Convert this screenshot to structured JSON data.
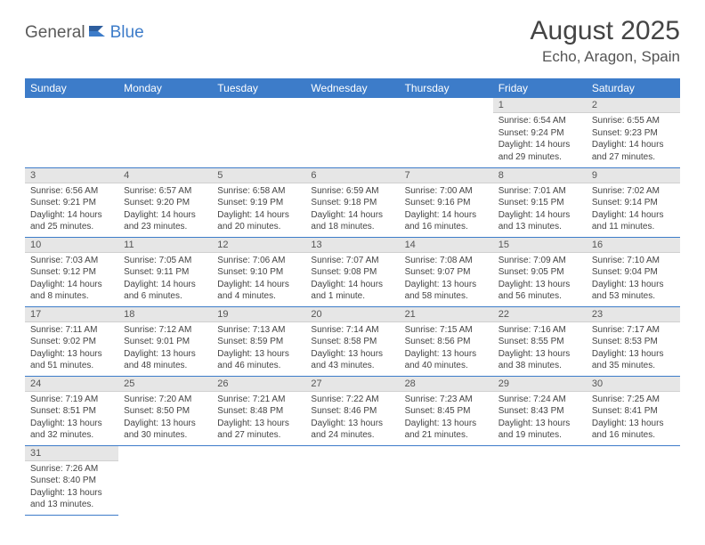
{
  "brand": {
    "part1": "General",
    "part2": "Blue"
  },
  "title": "August 2025",
  "location": "Echo, Aragon, Spain",
  "colors": {
    "header_bg": "#3d7cc9",
    "header_text": "#ffffff",
    "daynum_bg": "#e6e6e6",
    "cell_border": "#3d7cc9",
    "body_text": "#444444"
  },
  "day_headers": [
    "Sunday",
    "Monday",
    "Tuesday",
    "Wednesday",
    "Thursday",
    "Friday",
    "Saturday"
  ],
  "weeks": [
    [
      null,
      null,
      null,
      null,
      null,
      {
        "n": "1",
        "sunrise": "Sunrise: 6:54 AM",
        "sunset": "Sunset: 9:24 PM",
        "daylight": "Daylight: 14 hours and 29 minutes."
      },
      {
        "n": "2",
        "sunrise": "Sunrise: 6:55 AM",
        "sunset": "Sunset: 9:23 PM",
        "daylight": "Daylight: 14 hours and 27 minutes."
      }
    ],
    [
      {
        "n": "3",
        "sunrise": "Sunrise: 6:56 AM",
        "sunset": "Sunset: 9:21 PM",
        "daylight": "Daylight: 14 hours and 25 minutes."
      },
      {
        "n": "4",
        "sunrise": "Sunrise: 6:57 AM",
        "sunset": "Sunset: 9:20 PM",
        "daylight": "Daylight: 14 hours and 23 minutes."
      },
      {
        "n": "5",
        "sunrise": "Sunrise: 6:58 AM",
        "sunset": "Sunset: 9:19 PM",
        "daylight": "Daylight: 14 hours and 20 minutes."
      },
      {
        "n": "6",
        "sunrise": "Sunrise: 6:59 AM",
        "sunset": "Sunset: 9:18 PM",
        "daylight": "Daylight: 14 hours and 18 minutes."
      },
      {
        "n": "7",
        "sunrise": "Sunrise: 7:00 AM",
        "sunset": "Sunset: 9:16 PM",
        "daylight": "Daylight: 14 hours and 16 minutes."
      },
      {
        "n": "8",
        "sunrise": "Sunrise: 7:01 AM",
        "sunset": "Sunset: 9:15 PM",
        "daylight": "Daylight: 14 hours and 13 minutes."
      },
      {
        "n": "9",
        "sunrise": "Sunrise: 7:02 AM",
        "sunset": "Sunset: 9:14 PM",
        "daylight": "Daylight: 14 hours and 11 minutes."
      }
    ],
    [
      {
        "n": "10",
        "sunrise": "Sunrise: 7:03 AM",
        "sunset": "Sunset: 9:12 PM",
        "daylight": "Daylight: 14 hours and 8 minutes."
      },
      {
        "n": "11",
        "sunrise": "Sunrise: 7:05 AM",
        "sunset": "Sunset: 9:11 PM",
        "daylight": "Daylight: 14 hours and 6 minutes."
      },
      {
        "n": "12",
        "sunrise": "Sunrise: 7:06 AM",
        "sunset": "Sunset: 9:10 PM",
        "daylight": "Daylight: 14 hours and 4 minutes."
      },
      {
        "n": "13",
        "sunrise": "Sunrise: 7:07 AM",
        "sunset": "Sunset: 9:08 PM",
        "daylight": "Daylight: 14 hours and 1 minute."
      },
      {
        "n": "14",
        "sunrise": "Sunrise: 7:08 AM",
        "sunset": "Sunset: 9:07 PM",
        "daylight": "Daylight: 13 hours and 58 minutes."
      },
      {
        "n": "15",
        "sunrise": "Sunrise: 7:09 AM",
        "sunset": "Sunset: 9:05 PM",
        "daylight": "Daylight: 13 hours and 56 minutes."
      },
      {
        "n": "16",
        "sunrise": "Sunrise: 7:10 AM",
        "sunset": "Sunset: 9:04 PM",
        "daylight": "Daylight: 13 hours and 53 minutes."
      }
    ],
    [
      {
        "n": "17",
        "sunrise": "Sunrise: 7:11 AM",
        "sunset": "Sunset: 9:02 PM",
        "daylight": "Daylight: 13 hours and 51 minutes."
      },
      {
        "n": "18",
        "sunrise": "Sunrise: 7:12 AM",
        "sunset": "Sunset: 9:01 PM",
        "daylight": "Daylight: 13 hours and 48 minutes."
      },
      {
        "n": "19",
        "sunrise": "Sunrise: 7:13 AM",
        "sunset": "Sunset: 8:59 PM",
        "daylight": "Daylight: 13 hours and 46 minutes."
      },
      {
        "n": "20",
        "sunrise": "Sunrise: 7:14 AM",
        "sunset": "Sunset: 8:58 PM",
        "daylight": "Daylight: 13 hours and 43 minutes."
      },
      {
        "n": "21",
        "sunrise": "Sunrise: 7:15 AM",
        "sunset": "Sunset: 8:56 PM",
        "daylight": "Daylight: 13 hours and 40 minutes."
      },
      {
        "n": "22",
        "sunrise": "Sunrise: 7:16 AM",
        "sunset": "Sunset: 8:55 PM",
        "daylight": "Daylight: 13 hours and 38 minutes."
      },
      {
        "n": "23",
        "sunrise": "Sunrise: 7:17 AM",
        "sunset": "Sunset: 8:53 PM",
        "daylight": "Daylight: 13 hours and 35 minutes."
      }
    ],
    [
      {
        "n": "24",
        "sunrise": "Sunrise: 7:19 AM",
        "sunset": "Sunset: 8:51 PM",
        "daylight": "Daylight: 13 hours and 32 minutes."
      },
      {
        "n": "25",
        "sunrise": "Sunrise: 7:20 AM",
        "sunset": "Sunset: 8:50 PM",
        "daylight": "Daylight: 13 hours and 30 minutes."
      },
      {
        "n": "26",
        "sunrise": "Sunrise: 7:21 AM",
        "sunset": "Sunset: 8:48 PM",
        "daylight": "Daylight: 13 hours and 27 minutes."
      },
      {
        "n": "27",
        "sunrise": "Sunrise: 7:22 AM",
        "sunset": "Sunset: 8:46 PM",
        "daylight": "Daylight: 13 hours and 24 minutes."
      },
      {
        "n": "28",
        "sunrise": "Sunrise: 7:23 AM",
        "sunset": "Sunset: 8:45 PM",
        "daylight": "Daylight: 13 hours and 21 minutes."
      },
      {
        "n": "29",
        "sunrise": "Sunrise: 7:24 AM",
        "sunset": "Sunset: 8:43 PM",
        "daylight": "Daylight: 13 hours and 19 minutes."
      },
      {
        "n": "30",
        "sunrise": "Sunrise: 7:25 AM",
        "sunset": "Sunset: 8:41 PM",
        "daylight": "Daylight: 13 hours and 16 minutes."
      }
    ],
    [
      {
        "n": "31",
        "sunrise": "Sunrise: 7:26 AM",
        "sunset": "Sunset: 8:40 PM",
        "daylight": "Daylight: 13 hours and 13 minutes."
      },
      null,
      null,
      null,
      null,
      null,
      null
    ]
  ]
}
